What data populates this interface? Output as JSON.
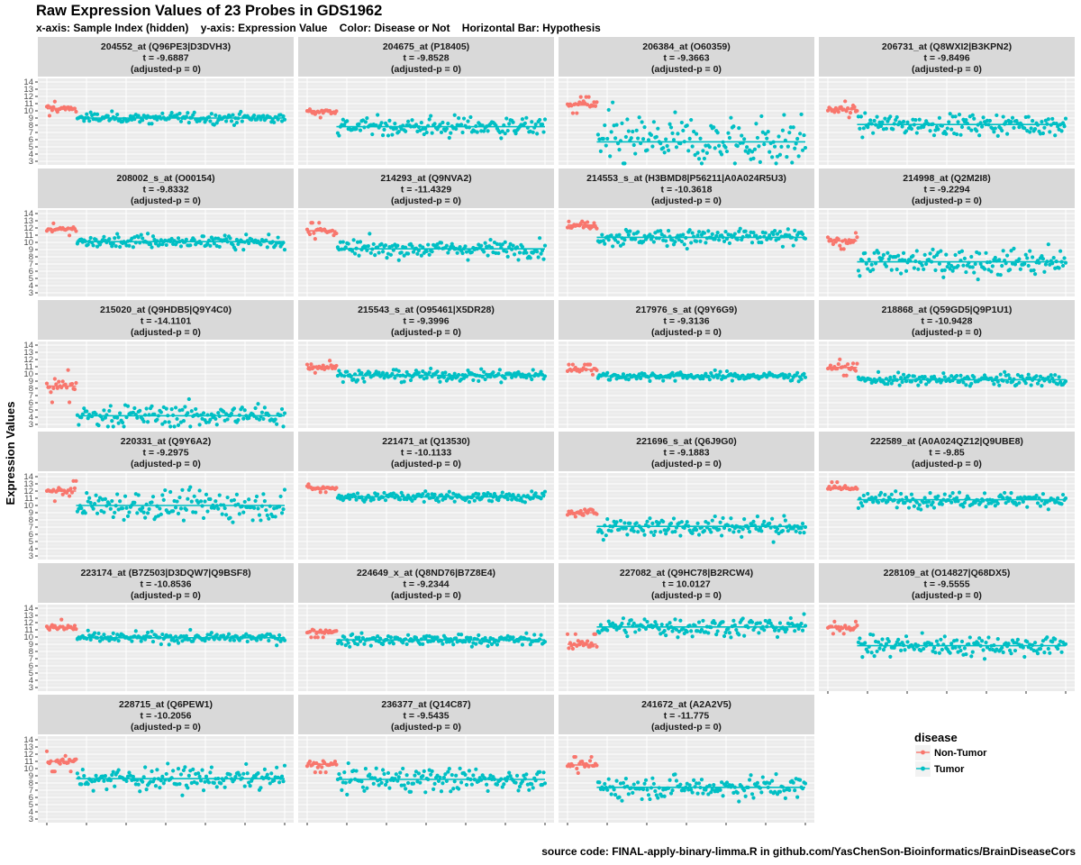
{
  "title": "Raw Expression Values of 23 Probes in GDS1962",
  "subtitle": "x-axis: Sample Index (hidden)    y-axis: Expression Value    Color: Disease or Not    Horizontal Bar: Hypothesis",
  "footer": "source code: FINAL-apply-binary-limma.R in github.com/YasChenSon-Bioinformatics/BrainDiseaseCors",
  "colors": {
    "non_tumor": "#F8766D",
    "tumor": "#00BFC4",
    "panel_bg": "#EBEBEB",
    "strip_bg": "#D9D9D9",
    "grid": "#FFFFFF"
  },
  "chart_data": {
    "type": "scatter",
    "facet_layout": "4 columns x 6 rows",
    "ylabel": "Expression Values",
    "xlabel": "",
    "ylim": [
      2.5,
      14.5
    ],
    "y_ticks": [
      3,
      4,
      5,
      6,
      7,
      8,
      9,
      10,
      11,
      12,
      13,
      14
    ],
    "x_axis": "Sample Index (hidden)",
    "n_non_tumor": 23,
    "n_tumor": 157,
    "legend": {
      "title": "disease",
      "position": "right",
      "entries": [
        "Non-Tumor",
        "Tumor"
      ]
    },
    "panels": [
      {
        "probe": "204552_at (Q96PE3|D3DVH3)",
        "t": "t = -9.6887",
        "p": "(adjusted-p = 0)",
        "non_tumor_mean": 10.3,
        "non_tumor_sd": 0.35,
        "tumor_mean": 9.0,
        "tumor_sd": 0.35,
        "hline": 9.0
      },
      {
        "probe": "204675_at (P18405)",
        "t": "t = -9.8528",
        "p": "(adjusted-p = 0)",
        "non_tumor_mean": 9.9,
        "non_tumor_sd": 0.3,
        "tumor_mean": 7.8,
        "tumor_sd": 0.7,
        "hline": 7.8
      },
      {
        "probe": "206384_at (O60359)",
        "t": "t = -9.3663",
        "p": "(adjusted-p = 0)",
        "non_tumor_mean": 10.8,
        "non_tumor_sd": 0.4,
        "tumor_mean": 5.7,
        "tumor_sd": 1.9,
        "hline": 5.7
      },
      {
        "probe": "206731_at (Q8WXI2|B3KPN2)",
        "t": "t = -9.8496",
        "p": "(adjusted-p = 0)",
        "non_tumor_mean": 10.2,
        "non_tumor_sd": 0.4,
        "tumor_mean": 8.1,
        "tumor_sd": 0.7,
        "hline": 8.1
      },
      {
        "probe": "208002_s_at (O00154)",
        "t": "t = -9.8332",
        "p": "(adjusted-p = 0)",
        "non_tumor_mean": 11.8,
        "non_tumor_sd": 0.3,
        "tumor_mean": 10.1,
        "tumor_sd": 0.5,
        "hline": 10.1
      },
      {
        "probe": "214293_at (Q9NVA2)",
        "t": "t = -11.4329",
        "p": "(adjusted-p = 0)",
        "non_tumor_mean": 11.6,
        "non_tumor_sd": 0.4,
        "tumor_mean": 9.1,
        "tumor_sd": 0.6,
        "hline": 9.1
      },
      {
        "probe": "214553_s_at (H3BMD8|P56211|A0A024R5U3)",
        "t": "t = -10.3618",
        "p": "(adjusted-p = 0)",
        "non_tumor_mean": 12.4,
        "non_tumor_sd": 0.5,
        "tumor_mean": 10.7,
        "tumor_sd": 0.6,
        "hline": 10.7
      },
      {
        "probe": "214998_at (Q2M2I8)",
        "t": "t = -9.2294",
        "p": "(adjusted-p = 0)",
        "non_tumor_mean": 10.2,
        "non_tumor_sd": 0.4,
        "tumor_mean": 7.3,
        "tumor_sd": 1.0,
        "hline": 7.3
      },
      {
        "probe": "215020_at (Q9HDB5|Q9Y4C0)",
        "t": "t = -14.1101",
        "p": "(adjusted-p = 0)",
        "non_tumor_mean": 8.3,
        "non_tumor_sd": 0.8,
        "tumor_mean": 4.2,
        "tumor_sd": 0.8,
        "hline": 4.2
      },
      {
        "probe": "215543_s_at (O95461|X5DR28)",
        "t": "t = -9.3996",
        "p": "(adjusted-p = 0)",
        "non_tumor_mean": 11.0,
        "non_tumor_sd": 0.3,
        "tumor_mean": 9.8,
        "tumor_sd": 0.4,
        "hline": 9.8
      },
      {
        "probe": "217976_s_at (Q9Y6G9)",
        "t": "t = -9.3136",
        "p": "(adjusted-p = 0)",
        "non_tumor_mean": 10.6,
        "non_tumor_sd": 0.25,
        "tumor_mean": 9.7,
        "tumor_sd": 0.3,
        "hline": 9.7
      },
      {
        "probe": "218868_at (Q59GD5|Q9P1U1)",
        "t": "t = -10.9428",
        "p": "(adjusted-p = 0)",
        "non_tumor_mean": 10.9,
        "non_tumor_sd": 0.4,
        "tumor_mean": 9.2,
        "tumor_sd": 0.4,
        "hline": 9.2
      },
      {
        "probe": "220331_at (Q9Y6A2)",
        "t": "t = -9.2975",
        "p": "(adjusted-p = 0)",
        "non_tumor_mean": 12.0,
        "non_tumor_sd": 0.5,
        "tumor_mean": 10.0,
        "tumor_sd": 1.0,
        "hline": 10.0
      },
      {
        "probe": "221471_at (Q13530)",
        "t": "t = -10.1133",
        "p": "(adjusted-p = 0)",
        "non_tumor_mean": 12.4,
        "non_tumor_sd": 0.2,
        "tumor_mean": 11.2,
        "tumor_sd": 0.35,
        "hline": 11.2
      },
      {
        "probe": "221696_s_at (Q6J9G0)",
        "t": "t = -9.1883",
        "p": "(adjusted-p = 0)",
        "non_tumor_mean": 9.0,
        "non_tumor_sd": 0.4,
        "tumor_mean": 7.1,
        "tumor_sd": 0.7,
        "hline": 7.1
      },
      {
        "probe": "222589_at (A0A024QZ12|Q9UBE8)",
        "t": "t = -9.85",
        "p": "(adjusted-p = 0)",
        "non_tumor_mean": 12.4,
        "non_tumor_sd": 0.3,
        "tumor_mean": 10.8,
        "tumor_sd": 0.5,
        "hline": 10.8
      },
      {
        "probe": "223174_at (B7Z503|D3DQW7|Q9BSF8)",
        "t": "t = -10.8536",
        "p": "(adjusted-p = 0)",
        "non_tumor_mean": 11.3,
        "non_tumor_sd": 0.4,
        "tumor_mean": 9.9,
        "tumor_sd": 0.35,
        "hline": 9.9
      },
      {
        "probe": "224649_x_at (Q8ND76|B7Z8E4)",
        "t": "t = -9.2344",
        "p": "(adjusted-p = 0)",
        "non_tumor_mean": 10.8,
        "non_tumor_sd": 0.3,
        "tumor_mean": 9.6,
        "tumor_sd": 0.4,
        "hline": 9.6
      },
      {
        "probe": "227082_at (Q9HC78|B2RCW4)",
        "t": "t = 10.0127",
        "p": "(adjusted-p = 0)",
        "non_tumor_mean": 9.0,
        "non_tumor_sd": 0.5,
        "tumor_mean": 11.4,
        "tumor_sd": 0.7,
        "hline": 11.4
      },
      {
        "probe": "228109_at (O14827|Q68DX5)",
        "t": "t = -9.5555",
        "p": "(adjusted-p = 0)",
        "non_tumor_mean": 11.3,
        "non_tumor_sd": 0.3,
        "tumor_mean": 8.8,
        "tumor_sd": 0.7,
        "hline": 8.8
      },
      {
        "probe": "228715_at (Q6PEW1)",
        "t": "t = -10.2056",
        "p": "(adjusted-p = 0)",
        "non_tumor_mean": 11.0,
        "non_tumor_sd": 0.5,
        "tumor_mean": 8.6,
        "tumor_sd": 0.8,
        "hline": 8.6
      },
      {
        "probe": "236377_at (Q14C87)",
        "t": "t = -9.5435",
        "p": "(adjusted-p = 0)",
        "non_tumor_mean": 10.6,
        "non_tumor_sd": 0.4,
        "tumor_mean": 8.5,
        "tumor_sd": 0.8,
        "hline": 8.5
      },
      {
        "probe": "241672_at (A2A2V5)",
        "t": "t = -11.775",
        "p": "(adjusted-p = 0)",
        "non_tumor_mean": 10.5,
        "non_tumor_sd": 0.4,
        "tumor_mean": 7.4,
        "tumor_sd": 0.8,
        "hline": 7.4
      }
    ]
  }
}
